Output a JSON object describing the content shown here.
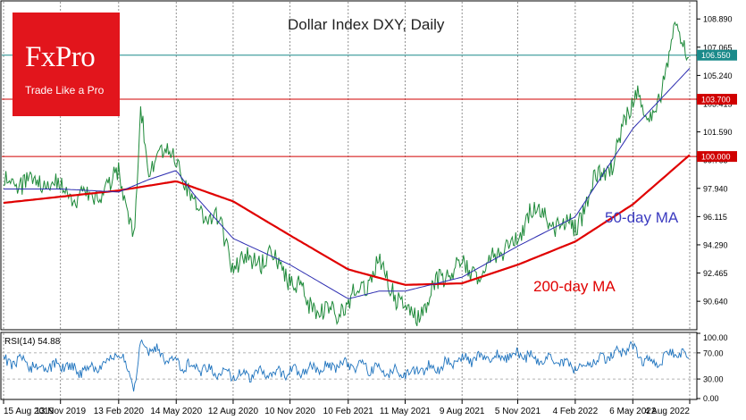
{
  "brand": {
    "name": "FxPro",
    "tagline": "Trade Like a Pro",
    "color": "#e2151c"
  },
  "chart_data": [
    {
      "type": "line",
      "title": "Dollar Index DXY, Daily",
      "x_ticks": [
        "15 Aug 2019",
        "13 Nov 2019",
        "13 Feb 2020",
        "14 May 2020",
        "12 Aug 2020",
        "10 Nov 2020",
        "10 Feb 2021",
        "11 May 2021",
        "9 Aug 2021",
        "5 Nov 2021",
        "4 Feb 2022",
        "6 May 2022",
        "4 Aug 2022"
      ],
      "y_ticks": [
        "108.890",
        "107.065",
        "105.240",
        "103.415",
        "101.590",
        "99.765",
        "97.940",
        "96.115",
        "94.290",
        "92.465",
        "90.640"
      ],
      "ylim": [
        88.8,
        110.0
      ],
      "grid": "dotted vertical",
      "current_price_label": "106.550",
      "series": [
        {
          "name": "Dollar Index DXY, Daily",
          "color": "#1f8a3a",
          "x": [
            "15 Aug 2019",
            "13 Sep 2019",
            "14 Oct 2019",
            "13 Nov 2019",
            "13 Dec 2019",
            "14 Jan 2020",
            "13 Feb 2020",
            "9 Mar 2020",
            "19 Mar 2020",
            "31 Mar 2020",
            "14 Apr 2020",
            "14 May 2020",
            "12 Jun 2020",
            "13 Jul 2020",
            "12 Aug 2020",
            "11 Sep 2020",
            "12 Oct 2020",
            "10 Nov 2020",
            "10 Dec 2020",
            "6 Jan 2021",
            "10 Feb 2021",
            "31 Mar 2021",
            "11 May 2021",
            "27 May 2021",
            "9 Jun 2021",
            "9 Jul 2021",
            "9 Aug 2021",
            "8 Sep 2021",
            "6 Oct 2021",
            "5 Nov 2021",
            "24 Nov 2021",
            "10 Dec 2021",
            "4 Jan 2022",
            "4 Feb 2022",
            "7 Mar 2022",
            "5 Apr 2022",
            "6 May 2022",
            "13 May 2022",
            "27 May 2022",
            "6 Jun 2022",
            "14 Jul 2022",
            "4 Aug 2022"
          ],
          "values": [
            98.2,
            98.4,
            98.2,
            98.1,
            97.4,
            97.3,
            98.9,
            95.0,
            102.9,
            99.1,
            100.2,
            99.9,
            96.7,
            96.3,
            93.1,
            93.2,
            93.5,
            92.1,
            90.6,
            89.7,
            90.4,
            93.1,
            90.0,
            89.8,
            90.1,
            92.3,
            92.9,
            92.6,
            94.0,
            94.4,
            96.7,
            96.2,
            95.7,
            95.4,
            98.3,
            99.6,
            103.8,
            104.7,
            101.6,
            102.2,
            108.5,
            106.55
          ]
        },
        {
          "name": "50-day MA",
          "color": "#2b2bb0",
          "x": [
            "15 Aug 2019",
            "13 Nov 2019",
            "13 Feb 2020",
            "31 Mar 2020",
            "14 May 2020",
            "12 Jun 2020",
            "12 Aug 2020",
            "10 Nov 2020",
            "10 Feb 2021",
            "31 Mar 2021",
            "11 May 2021",
            "9 Aug 2021",
            "5 Nov 2021",
            "4 Feb 2022",
            "6 May 2022",
            "4 Aug 2022"
          ],
          "values": [
            97.9,
            97.9,
            97.7,
            98.5,
            99.1,
            97.5,
            94.7,
            93.0,
            90.8,
            91.3,
            91.3,
            92.2,
            94.2,
            96.1,
            101.8,
            105.7
          ]
        },
        {
          "name": "200-day MA",
          "color": "#e00000",
          "x": [
            "15 Aug 2019",
            "13 Nov 2019",
            "13 Feb 2020",
            "14 May 2020",
            "12 Aug 2020",
            "10 Nov 2020",
            "10 Feb 2021",
            "11 May 2021",
            "9 Aug 2021",
            "5 Nov 2021",
            "4 Feb 2022",
            "6 May 2022",
            "4 Aug 2022"
          ],
          "values": [
            97.0,
            97.4,
            97.8,
            98.4,
            97.1,
            94.9,
            92.7,
            91.7,
            91.8,
            93.0,
            94.5,
            96.9,
            100.1
          ]
        }
      ],
      "annotations": [
        {
          "text": "50-day MA",
          "color": "#3b3bc0"
        },
        {
          "text": "200-day MA",
          "color": "#e00000"
        }
      ],
      "horizontal_lines": [
        {
          "value": 106.55,
          "label": "106.550",
          "color": "#1a8a8a"
        },
        {
          "value": 103.7,
          "label": "103.700",
          "color": "#d00000"
        },
        {
          "value": 100.0,
          "label": "100.000",
          "color": "#d00000"
        }
      ]
    },
    {
      "type": "line",
      "title": "RSI(14) 54.88",
      "y_ticks": [
        "100.00",
        "70.00",
        "30.00",
        "0.00"
      ],
      "ylim": [
        0,
        100
      ],
      "reference_levels": [
        70,
        30
      ],
      "series": [
        {
          "name": "RSI(14)",
          "color": "#1e73be",
          "x": [
            "15 Aug 2019",
            "13 Sep 2019",
            "14 Oct 2019",
            "13 Nov 2019",
            "13 Dec 2019",
            "14 Jan 2020",
            "13 Feb 2020",
            "9 Mar 2020",
            "19 Mar 2020",
            "14 May 2020",
            "12 Aug 2020",
            "10 Nov 2020",
            "10 Feb 2021",
            "11 May 2021",
            "9 Aug 2021",
            "5 Nov 2021",
            "4 Feb 2022",
            "6 May 2022",
            "13 May 2022",
            "6 Jun 2022",
            "14 Jul 2022",
            "4 Aug 2022"
          ],
          "values": [
            55,
            58,
            45,
            52,
            43,
            50,
            72,
            20,
            85,
            55,
            35,
            40,
            52,
            38,
            58,
            68,
            48,
            78,
            70,
            50,
            75,
            54.88
          ]
        }
      ]
    }
  ]
}
